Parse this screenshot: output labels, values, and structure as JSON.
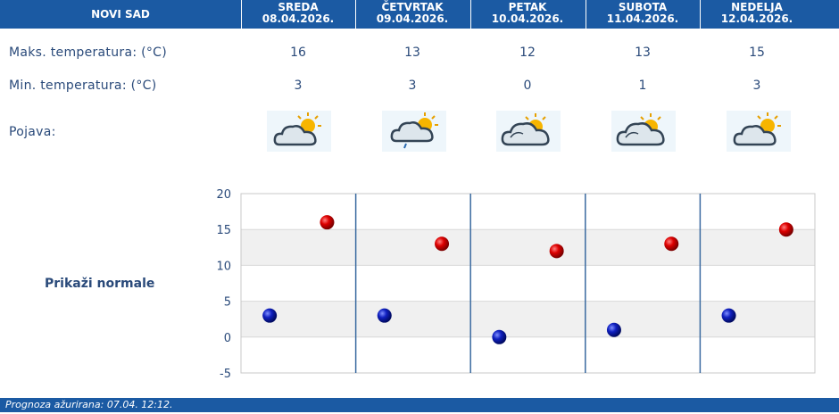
{
  "header": {
    "city": "NOVI SAD",
    "days": [
      {
        "name": "SREDA",
        "date": "08.04.2026."
      },
      {
        "name": "ČETVRTAK",
        "date": "09.04.2026."
      },
      {
        "name": "PETAK",
        "date": "10.04.2026."
      },
      {
        "name": "SUBOTA",
        "date": "11.04.2026."
      },
      {
        "name": "NEDELJA",
        "date": "12.04.2026."
      }
    ]
  },
  "rows": {
    "max_label": "Maks. temperatura: (°C)",
    "min_label": "Min. temperatura: (°C)",
    "weather_label": "Pojava:",
    "max_values": [
      "16",
      "13",
      "12",
      "13",
      "15"
    ],
    "min_values": [
      "3",
      "3",
      "0",
      "1",
      "3"
    ],
    "weather_icons": [
      "partly-cloudy-sun-icon",
      "cloudy-sun-light-rain-icon",
      "cloudy-sun-icon",
      "cloudy-sun-icon",
      "partly-cloudy-sun-icon"
    ]
  },
  "normals_link": "Prikaži normale",
  "footer": {
    "text": "Prognoza ažurirana:  07.04. 12:12."
  },
  "colors": {
    "header_bg": "#1b5aa3",
    "text": "#2a4a7a",
    "max_marker": "#cc0000",
    "min_marker": "#0a1aa8"
  },
  "chart_data": {
    "type": "scatter",
    "categories": [
      "SREDA",
      "ČETVRTAK",
      "PETAK",
      "SUBOTA",
      "NEDELJA"
    ],
    "series": [
      {
        "values": [
          16,
          13,
          12,
          13,
          15
        ],
        "color": "#cc0000"
      },
      {
        "values": [
          3,
          3,
          0,
          1,
          3
        ],
        "color": "#0a1aa8"
      }
    ],
    "ylim": [
      -5,
      20
    ],
    "yticks": [
      "20",
      "15",
      "10",
      "5",
      "0",
      "-5"
    ],
    "grid": true
  }
}
